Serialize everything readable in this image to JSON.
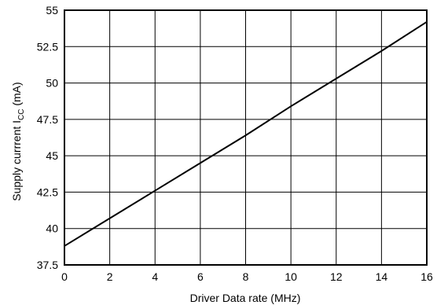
{
  "chart_data": {
    "type": "line",
    "title": "",
    "xlabel": "Driver Data rate (MHz)",
    "ylabel": {
      "prefix": "Supply currrent I",
      "subscript": "CC",
      "suffix": " (mA)"
    },
    "xlim": [
      0,
      16
    ],
    "ylim": [
      37.5,
      55
    ],
    "xticks": [
      0,
      2,
      4,
      6,
      8,
      10,
      12,
      14,
      16
    ],
    "yticks": [
      37.5,
      40,
      42.5,
      45,
      47.5,
      50,
      52.5,
      55
    ],
    "xtick_labels": [
      "0",
      "2",
      "4",
      "6",
      "8",
      "10",
      "12",
      "14",
      "16"
    ],
    "ytick_labels": [
      "37.5",
      "40",
      "42.5",
      "45",
      "47.5",
      "50",
      "52.5",
      "55"
    ],
    "grid": true,
    "series": [
      {
        "color": "#000000",
        "x": [
          0,
          2,
          4,
          6,
          8,
          10,
          12,
          14,
          16
        ],
        "y": [
          38.8,
          40.7,
          42.6,
          44.5,
          46.4,
          48.4,
          50.3,
          52.2,
          54.2
        ]
      }
    ]
  }
}
